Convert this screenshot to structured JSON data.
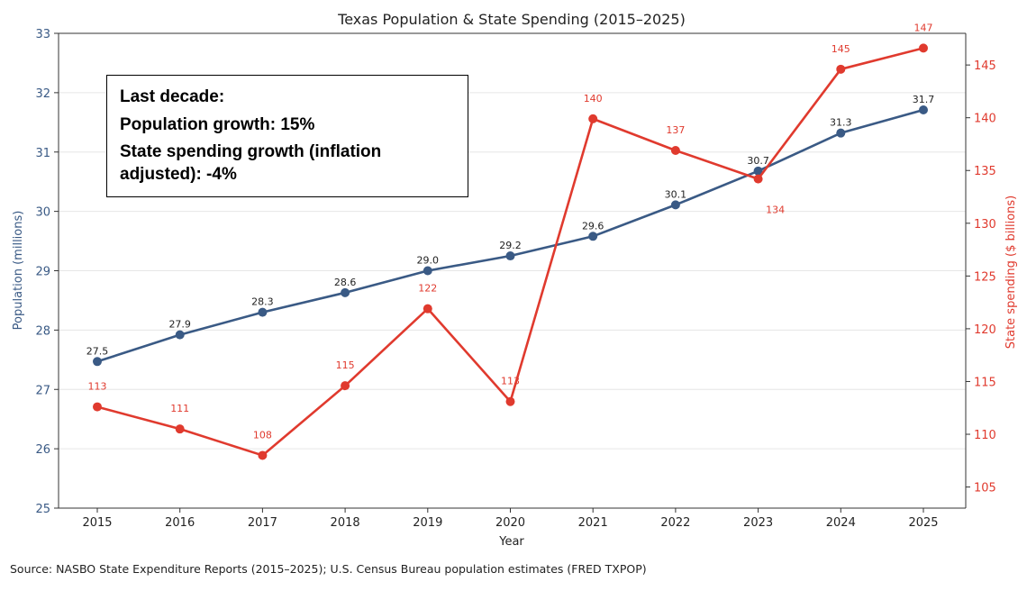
{
  "chart_data": {
    "type": "line",
    "title": "Texas Population & State Spending (2015–2025)",
    "xlabel": "Year",
    "categories": [
      "2015",
      "2016",
      "2017",
      "2018",
      "2019",
      "2020",
      "2021",
      "2022",
      "2023",
      "2024",
      "2025"
    ],
    "series": [
      {
        "name": "Population (millions)",
        "axis": "left",
        "color": "#3a5a85",
        "values": [
          27.5,
          27.9,
          28.3,
          28.6,
          29.0,
          29.2,
          29.6,
          30.1,
          30.7,
          31.3,
          31.7
        ],
        "plot_values": [
          27.47,
          27.92,
          28.3,
          28.63,
          29.0,
          29.25,
          29.58,
          30.11,
          30.68,
          31.32,
          31.71
        ],
        "labels": [
          "27.5",
          "27.9",
          "28.3",
          "28.6",
          "29.0",
          "29.2",
          "29.6",
          "30.1",
          "30.7",
          "31.3",
          "31.7"
        ]
      },
      {
        "name": "State spending ($ billions)",
        "axis": "right",
        "color": "#e03a2e",
        "values": [
          113,
          111,
          108,
          115,
          122,
          113,
          140,
          137,
          134,
          145,
          147
        ],
        "plot_values": [
          112.6,
          110.5,
          108.0,
          114.6,
          121.9,
          113.1,
          139.9,
          136.9,
          134.2,
          144.6,
          146.6
        ],
        "labels": [
          "113",
          "111",
          "108",
          "115",
          "122",
          "113",
          "140",
          "137",
          "134",
          "145",
          "147"
        ]
      }
    ],
    "left_axis": {
      "label": "Population (millions)",
      "range": [
        25,
        33
      ],
      "ticks": [
        25,
        26,
        27,
        28,
        29,
        30,
        31,
        32,
        33
      ]
    },
    "right_axis": {
      "label": "State spending ($ billions)",
      "range": [
        103,
        148
      ],
      "ticks": [
        105,
        110,
        115,
        120,
        125,
        130,
        135,
        140,
        145
      ]
    },
    "grid": "horizontal",
    "annotation": {
      "lines": [
        "Last decade:",
        "Population growth: 15%",
        "State spending growth (inflation adjusted): -4%"
      ]
    },
    "source": "Source: NASBO State Expenditure Reports (2015–2025); U.S. Census Bureau population estimates (FRED TXPOP)",
    "colors": {
      "left_axis": "#3a5a85",
      "right_axis": "#e03a2e",
      "grid": "#e6e6e6"
    }
  }
}
